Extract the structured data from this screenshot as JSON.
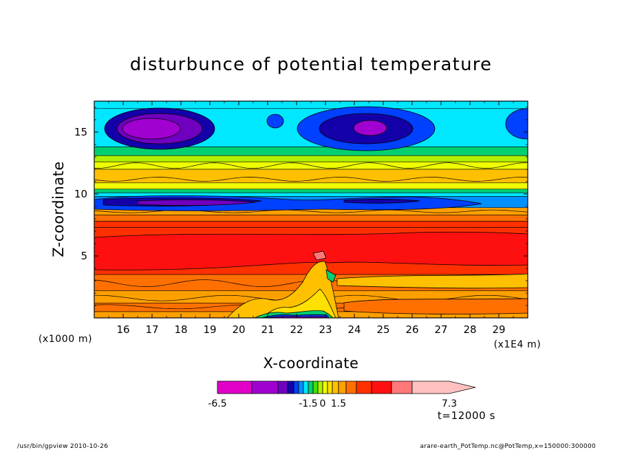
{
  "chart_data": {
    "type": "heatmap",
    "title": "disturbunce of potential temperature",
    "xlabel": "X-coordinate",
    "ylabel": "Z-coordinate",
    "x_unit_label": "(x1E4 m)",
    "y_unit_label": "(x1000 m)",
    "xlim": [
      15,
      30
    ],
    "ylim": [
      0,
      17.5
    ],
    "x_ticks": [
      "16",
      "17",
      "18",
      "19",
      "20",
      "21",
      "22",
      "23",
      "24",
      "25",
      "26",
      "27",
      "28",
      "29"
    ],
    "x_tick_values": [
      16,
      17,
      18,
      19,
      20,
      21,
      22,
      23,
      24,
      25,
      26,
      27,
      28,
      29
    ],
    "y_ticks": [
      "5",
      "10",
      "15"
    ],
    "y_tick_values": [
      5,
      10,
      15
    ],
    "colorbar": {
      "levels": [
        -6.5,
        -5.5,
        -4.5,
        -3.5,
        -3.0,
        -2.5,
        -2.0,
        -1.5,
        -1.0,
        -0.5,
        0,
        0.5,
        1.0,
        1.5,
        2.5,
        3.5,
        4.5,
        5.5,
        6.5,
        7.3
      ],
      "colors": [
        "#e000c8",
        "#a000d0",
        "#7000c0",
        "#1400a8",
        "#0040ff",
        "#0090ff",
        "#00e8ff",
        "#00d070",
        "#40e000",
        "#b0f000",
        "#f0ff00",
        "#ffe000",
        "#ffc000",
        "#ffa000",
        "#ff7000",
        "#ff3000",
        "#ff1010",
        "#ff7878",
        "#ffc0c0"
      ],
      "tick_labels": [
        "-6.5",
        "-1.5",
        "0",
        "1.5",
        "7.3"
      ],
      "tick_values": [
        -6.5,
        -1.5,
        0,
        1.5,
        7.3
      ],
      "extend": "max"
    },
    "description_time": "t=12000 s",
    "grid": false
  },
  "footer": {
    "left": "/usr/bin/gpview   2010-10-26",
    "right": "arare-earth_PotTemp.nc@PotTemp,x=150000:300000"
  },
  "colors": {
    "background": "#ffffff",
    "axis": "#000000"
  }
}
